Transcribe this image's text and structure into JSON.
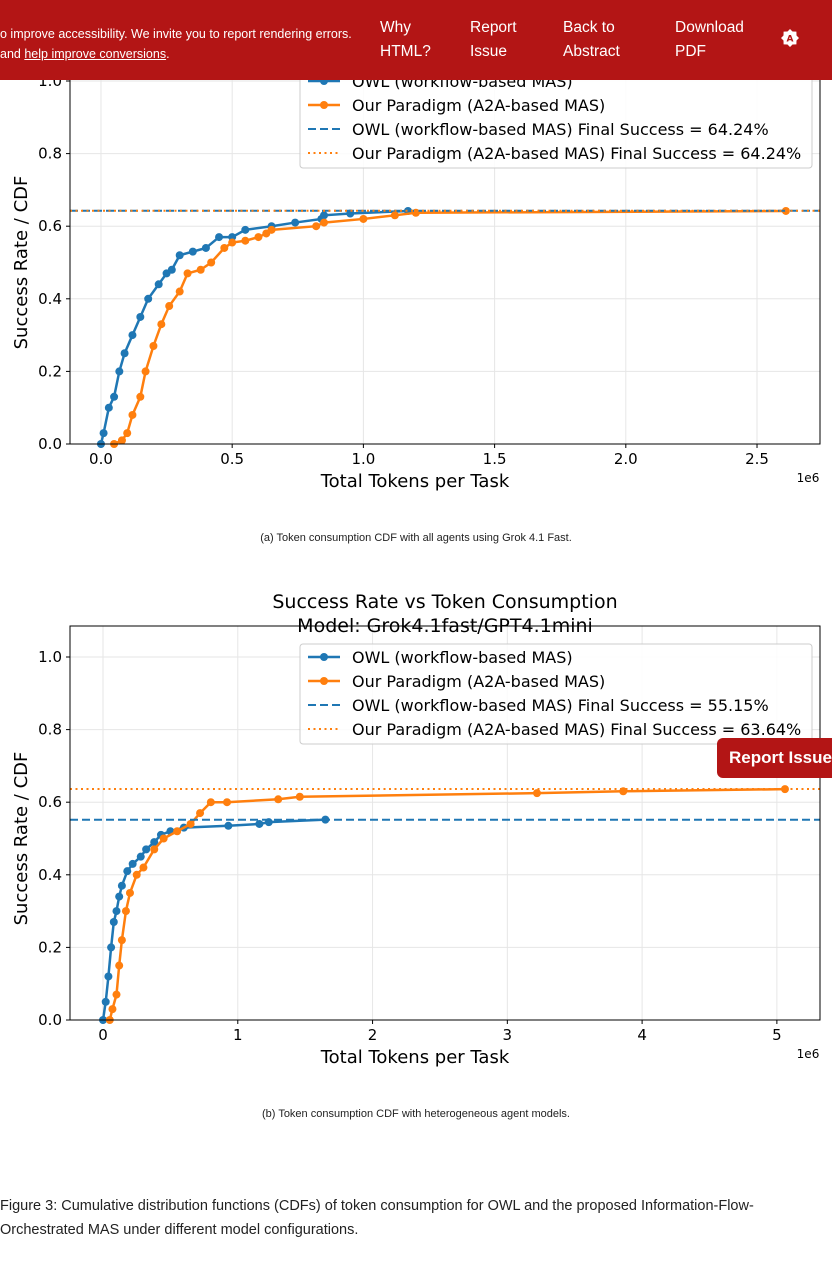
{
  "header": {
    "notice_line1": "o improve accessibility. We invite you to report rendering errors.",
    "notice_line2_prefix": "and ",
    "notice_link": "help improve conversions",
    "notice_line2_suffix": ".",
    "nav": [
      {
        "line1": "Why",
        "line2": "HTML?"
      },
      {
        "line1": "Report",
        "line2": "Issue"
      },
      {
        "line1": "Back to",
        "line2": "Abstract"
      },
      {
        "line1": "Download",
        "line2": "PDF"
      }
    ],
    "theme_icon": "accessibility-theme-icon"
  },
  "floating_button": "Report Issue",
  "colors": {
    "header": "#b31515",
    "owl": "#1f77b4",
    "ours": "#ff7f0e"
  },
  "captions": {
    "a": "(a)  Token consumption CDF with all agents using Grok 4.1 Fast.",
    "b": "(b)  Token consumption CDF with heterogeneous agent models.",
    "figure": "Figure 3: Cumulative distribution functions (CDFs) of token consumption for OWL and the proposed Information-Flow-Orchestrated MAS under different model configurations."
  },
  "chart_data": [
    {
      "type": "line",
      "title": "",
      "xlabel": "Total Tokens per Task",
      "ylabel": "Success Rate / CDF",
      "x_multiplier": "1e6",
      "xlim": [
        -0.118,
        2.74
      ],
      "ylim": [
        0,
        1.0
      ],
      "xticks": [
        "0.0",
        "0.5",
        "1.0",
        "1.5",
        "2.0",
        "2.5"
      ],
      "xtick_values": [
        0,
        0.5,
        1.0,
        1.5,
        2.0,
        2.5
      ],
      "yticks": [
        "0.0",
        "0.2",
        "0.4",
        "0.6",
        "0.8",
        "1.0"
      ],
      "ytick_values": [
        0,
        0.2,
        0.4,
        0.6,
        0.8,
        1.0
      ],
      "grid": true,
      "legend_position": "top-right",
      "series": [
        {
          "name": "OWL (workflow-based MAS)",
          "style": "solid-marker",
          "color": "#1f77b4",
          "x": [
            0.0,
            0.01,
            0.03,
            0.05,
            0.07,
            0.09,
            0.12,
            0.15,
            0.18,
            0.22,
            0.25,
            0.27,
            0.3,
            0.35,
            0.4,
            0.45,
            0.5,
            0.55,
            0.65,
            0.74,
            0.84,
            0.85,
            0.95,
            1.17
          ],
          "y": [
            0.0,
            0.03,
            0.1,
            0.13,
            0.2,
            0.25,
            0.3,
            0.35,
            0.4,
            0.44,
            0.47,
            0.48,
            0.52,
            0.53,
            0.54,
            0.57,
            0.57,
            0.59,
            0.6,
            0.61,
            0.62,
            0.63,
            0.635,
            0.642
          ]
        },
        {
          "name": "Our Paradigm (A2A-based MAS)",
          "style": "solid-marker",
          "color": "#ff7f0e",
          "x": [
            0.05,
            0.08,
            0.1,
            0.12,
            0.15,
            0.17,
            0.2,
            0.23,
            0.26,
            0.3,
            0.33,
            0.38,
            0.42,
            0.47,
            0.5,
            0.55,
            0.6,
            0.63,
            0.65,
            0.82,
            0.85,
            1.0,
            1.12,
            1.2,
            2.61
          ],
          "y": [
            0.0,
            0.01,
            0.03,
            0.08,
            0.13,
            0.2,
            0.27,
            0.33,
            0.38,
            0.42,
            0.47,
            0.48,
            0.5,
            0.54,
            0.555,
            0.56,
            0.57,
            0.58,
            0.59,
            0.6,
            0.61,
            0.62,
            0.63,
            0.637,
            0.642
          ]
        },
        {
          "name": "OWL (workflow-based MAS) Final Success = 64.24%",
          "style": "dashed",
          "color": "#1f77b4",
          "hline": 0.6424
        },
        {
          "name": "Our Paradigm (A2A-based MAS) Final Success = 64.24%",
          "style": "dotted",
          "color": "#ff7f0e",
          "hline": 0.6424
        }
      ]
    },
    {
      "type": "line",
      "title": "Success Rate vs Token Consumption",
      "subtitle": "Model: Grok4.1fast/GPT4.1mini",
      "xlabel": "Total Tokens per Task",
      "ylabel": "Success Rate / CDF",
      "x_multiplier": "1e6",
      "xlim": [
        -0.245,
        5.32
      ],
      "ylim": [
        0,
        1.0
      ],
      "xticks": [
        "0",
        "1",
        "2",
        "3",
        "4",
        "5"
      ],
      "xtick_values": [
        0,
        1,
        2,
        3,
        4,
        5
      ],
      "yticks": [
        "0.0",
        "0.2",
        "0.4",
        "0.6",
        "0.8",
        "1.0"
      ],
      "ytick_values": [
        0,
        0.2,
        0.4,
        0.6,
        0.8,
        1.0
      ],
      "grid": true,
      "legend_position": "top-right",
      "series": [
        {
          "name": "OWL (workflow-based MAS)",
          "style": "solid-marker",
          "color": "#1f77b4",
          "x": [
            0,
            0.02,
            0.04,
            0.06,
            0.08,
            0.1,
            0.12,
            0.14,
            0.18,
            0.22,
            0.28,
            0.32,
            0.38,
            0.43,
            0.5,
            0.6,
            0.93,
            1.16,
            1.23,
            1.65
          ],
          "y": [
            0,
            0.05,
            0.12,
            0.2,
            0.27,
            0.3,
            0.34,
            0.37,
            0.41,
            0.43,
            0.45,
            0.47,
            0.49,
            0.51,
            0.52,
            0.53,
            0.535,
            0.54,
            0.545,
            0.552
          ]
        },
        {
          "name": "Our Paradigm (A2A-based MAS)",
          "style": "solid-marker",
          "color": "#ff7f0e",
          "x": [
            0.05,
            0.07,
            0.1,
            0.12,
            0.14,
            0.17,
            0.2,
            0.25,
            0.3,
            0.38,
            0.45,
            0.55,
            0.65,
            0.72,
            0.8,
            0.92,
            1.3,
            1.46,
            3.22,
            3.86,
            5.06
          ],
          "y": [
            0,
            0.03,
            0.07,
            0.15,
            0.22,
            0.3,
            0.35,
            0.4,
            0.42,
            0.47,
            0.5,
            0.52,
            0.54,
            0.57,
            0.6,
            0.6,
            0.608,
            0.615,
            0.625,
            0.63,
            0.636
          ]
        },
        {
          "name": "OWL (workflow-based MAS) Final Success = 55.15%",
          "style": "dashed",
          "color": "#1f77b4",
          "hline": 0.5515
        },
        {
          "name": "Our Paradigm (A2A-based MAS) Final Success = 63.64%",
          "style": "dotted",
          "color": "#ff7f0e",
          "hline": 0.6364
        }
      ]
    }
  ]
}
